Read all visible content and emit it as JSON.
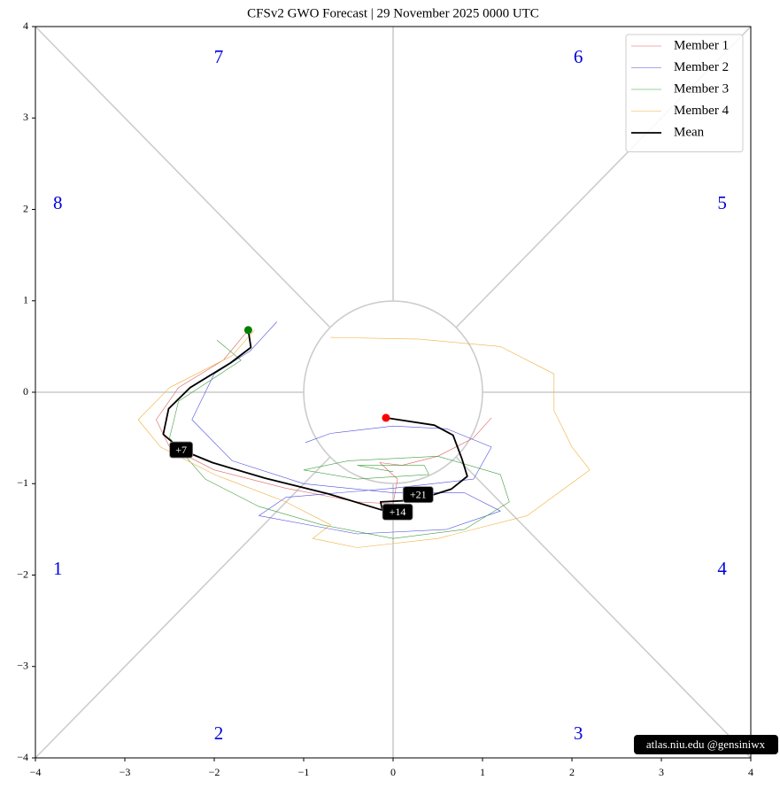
{
  "chart_data": {
    "type": "line",
    "title": "CFSv2 GWO Forecast  |  29  November  2025 0000 UTC",
    "xlim": [
      -4,
      4
    ],
    "ylim": [
      -4,
      4
    ],
    "xticks": [
      {
        "value": -4,
        "label": "−4"
      },
      {
        "value": -3,
        "label": "−3"
      },
      {
        "value": -2,
        "label": "−2"
      },
      {
        "value": -1,
        "label": "−1"
      },
      0,
      1,
      2,
      3,
      4
    ],
    "yticks": [
      {
        "value": -4,
        "label": "−4"
      },
      {
        "value": -3,
        "label": "−3"
      },
      {
        "value": -2,
        "label": "−2"
      },
      {
        "value": -1,
        "label": "−1"
      },
      0,
      1,
      2,
      3,
      4
    ],
    "legend": "upper right",
    "series": [
      {
        "name": "Member 1",
        "color": "#e06060",
        "width": 0.6,
        "x": [
          -1.62,
          -1.9,
          -2.4,
          -2.65,
          -2.5,
          -2.0,
          -1.2,
          -0.4,
          0.0,
          0.05,
          -0.15,
          0.1,
          0.5,
          0.9,
          1.1
        ],
        "y": [
          0.68,
          0.35,
          0.05,
          -0.3,
          -0.6,
          -0.85,
          -1.05,
          -1.2,
          -1.22,
          -0.95,
          -0.77,
          -0.8,
          -0.7,
          -0.5,
          -0.28
        ]
      },
      {
        "name": "Member 2",
        "color": "#5050e0",
        "width": 0.6,
        "x": [
          -1.3,
          -1.6,
          -2.0,
          -2.25,
          -1.8,
          -1.0,
          0.0,
          0.8,
          1.2,
          0.6,
          -0.4,
          -1.5,
          -1.2,
          0.0,
          0.9,
          1.1,
          0.6,
          0.0,
          -0.7,
          -0.98
        ],
        "y": [
          0.77,
          0.45,
          0.2,
          -0.3,
          -0.75,
          -1.0,
          -1.1,
          -1.1,
          -1.3,
          -1.5,
          -1.55,
          -1.35,
          -1.15,
          -1.05,
          -0.95,
          -0.6,
          -0.4,
          -0.37,
          -0.45,
          -0.55
        ]
      },
      {
        "name": "Member 3",
        "color": "#40a040",
        "width": 0.6,
        "x": [
          -1.97,
          -1.7,
          -2.4,
          -2.5,
          -2.1,
          -1.5,
          -0.8,
          0.0,
          0.8,
          1.3,
          1.2,
          0.5,
          -0.5,
          -1.0,
          -0.4,
          0.4,
          0.35,
          -0.4,
          0.0
        ],
        "y": [
          0.57,
          0.35,
          -0.1,
          -0.5,
          -0.95,
          -1.25,
          -1.45,
          -1.6,
          -1.5,
          -1.2,
          -0.9,
          -0.7,
          -0.75,
          -0.85,
          -0.95,
          -0.9,
          -0.8,
          -0.8,
          -0.87
        ]
      },
      {
        "name": "Member 4",
        "color": "#f0b040",
        "width": 0.6,
        "x": [
          -1.55,
          -1.8,
          -2.5,
          -2.85,
          -2.6,
          -2.0,
          -1.2,
          -0.7,
          -0.9,
          -0.4,
          0.5,
          1.5,
          2.2,
          2.0,
          1.8,
          1.8,
          1.2,
          0.3,
          -0.7
        ],
        "y": [
          0.68,
          0.4,
          0.05,
          -0.3,
          -0.6,
          -0.9,
          -1.2,
          -1.45,
          -1.6,
          -1.7,
          -1.6,
          -1.35,
          -0.85,
          -0.6,
          -0.2,
          0.2,
          0.5,
          0.58,
          0.6
        ]
      },
      {
        "name": "Mean",
        "color": "#000000",
        "width": 1.8,
        "x": [
          -1.62,
          -1.59,
          -1.82,
          -2.27,
          -2.51,
          -2.57,
          -2.37,
          -2.02,
          -1.43,
          -0.73,
          -0.12,
          -0.14,
          0.26,
          0.65,
          0.83,
          0.77,
          0.67,
          0.46,
          -0.08
        ],
        "y": [
          0.68,
          0.49,
          0.32,
          0.05,
          -0.18,
          -0.46,
          -0.63,
          -0.77,
          -0.94,
          -1.11,
          -1.29,
          -1.2,
          -1.18,
          -1.06,
          -0.92,
          -0.73,
          -0.47,
          -0.36,
          -0.28
        ]
      }
    ],
    "start_color": "#008000",
    "end_color": "#ff0000",
    "annotations": [
      {
        "text": "+7",
        "x": -2.37,
        "y": -0.63
      },
      {
        "text": "+14",
        "x": 0.05,
        "y": -1.31
      },
      {
        "text": "+21",
        "x": 0.28,
        "y": -1.12
      }
    ],
    "phase_labels": [
      {
        "text": "1",
        "x": -3.75,
        "y": -1.95
      },
      {
        "text": "2",
        "x": -1.95,
        "y": -3.75
      },
      {
        "text": "3",
        "x": 2.07,
        "y": -3.75
      },
      {
        "text": "4",
        "x": 3.68,
        "y": -1.95
      },
      {
        "text": "5",
        "x": 3.68,
        "y": 2.05
      },
      {
        "text": "6",
        "x": 2.07,
        "y": 3.65
      },
      {
        "text": "7",
        "x": -1.95,
        "y": 3.65
      },
      {
        "text": "8",
        "x": -3.75,
        "y": 2.05
      }
    ],
    "phase_color": "#0000dd",
    "watermark": "atlas.niu.edu  @gensiniwx"
  }
}
